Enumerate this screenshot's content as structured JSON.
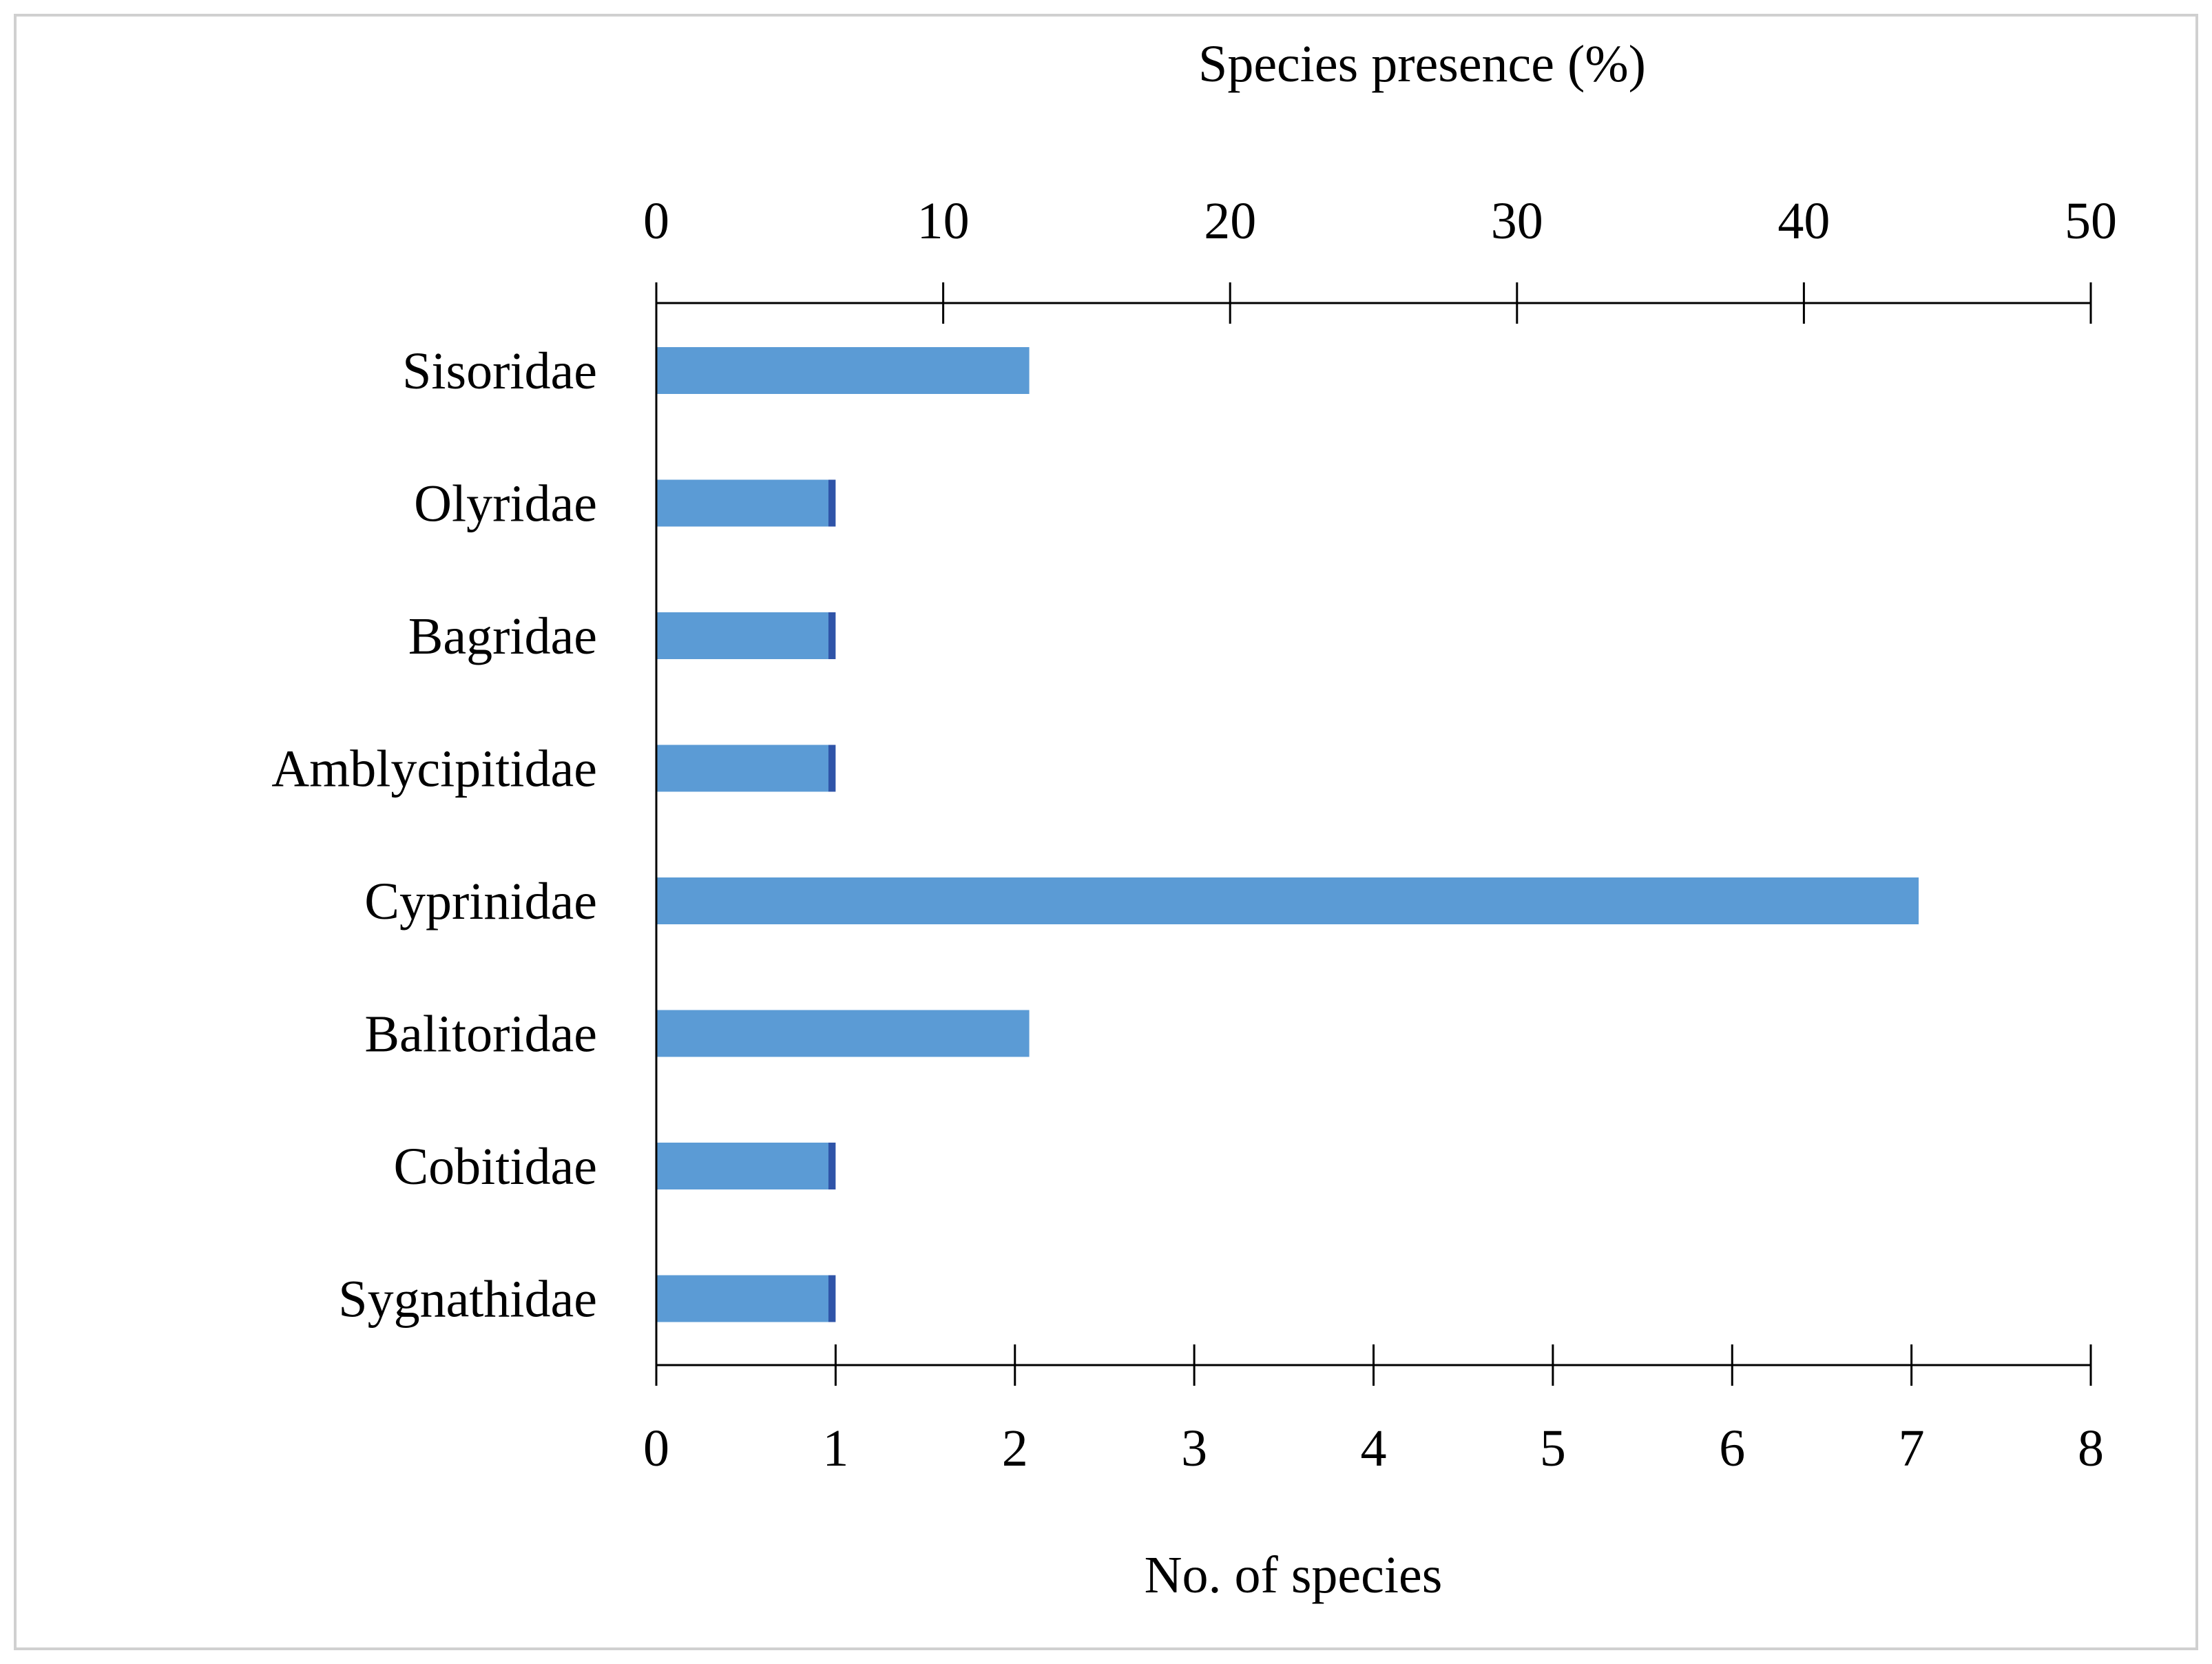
{
  "chart_data": {
    "type": "bar",
    "orientation": "horizontal",
    "categories": [
      "Sisoridae",
      "Olyridae",
      "Bagridae",
      "Amblycipitidae",
      "Cyprinidae",
      "Balitoridae",
      "Cobitidae",
      "Sygnathidae"
    ],
    "series": [
      {
        "name": "Species presence (%)",
        "axis": "top",
        "color": "#5b9bd5",
        "values": [
          13,
          6,
          6,
          6,
          44,
          13,
          6,
          6
        ]
      },
      {
        "name": "No. of species",
        "axis": "bottom",
        "color": "#2f54a8",
        "values": [
          2,
          1,
          1,
          1,
          7,
          2,
          1,
          1
        ]
      }
    ],
    "top_axis": {
      "label": "Species presence (%)",
      "range": [
        0,
        50
      ],
      "ticks": [
        0,
        10,
        20,
        30,
        40,
        50
      ]
    },
    "bottom_axis": {
      "label": "No. of species",
      "range": [
        0,
        8
      ],
      "ticks": [
        0,
        1,
        2,
        3,
        4,
        5,
        6,
        7,
        8
      ]
    },
    "grid": false,
    "legend": "none"
  }
}
